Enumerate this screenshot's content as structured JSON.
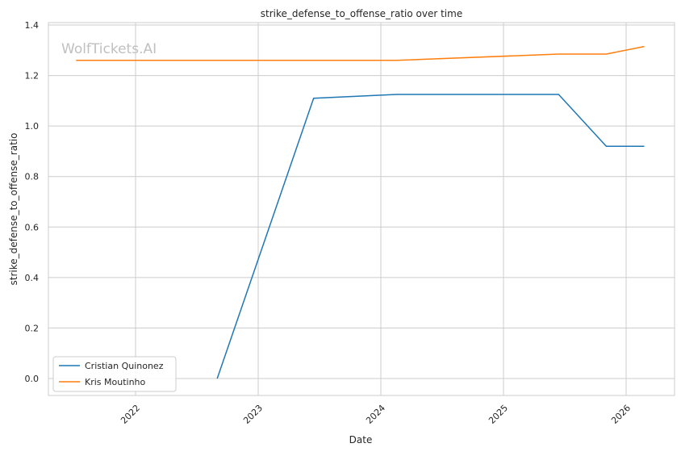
{
  "chart_data": {
    "type": "line",
    "title": "strike_defense_to_offense_ratio over time",
    "xlabel": "Date",
    "ylabel": "strike_defense_to_offense_ratio",
    "watermark": "WolfTickets.AI",
    "grid": true,
    "legend_position": "bottom-left",
    "xlim": [
      "2021-05-01",
      "2026-05-01"
    ],
    "ylim": [
      -0.07,
      1.41
    ],
    "x_ticks": [
      "2022",
      "2023",
      "2024",
      "2025",
      "2026"
    ],
    "y_ticks": [
      "0.0",
      "0.2",
      "0.4",
      "0.6",
      "0.8",
      "1.0",
      "1.2",
      "1.4"
    ],
    "series": [
      {
        "name": "Cristian Quinonez",
        "color": "#1f77b4",
        "x": [
          "2022-09-01",
          "2023-06-15",
          "2024-02-17",
          "2025-06-14",
          "2025-11-03",
          "2026-02-24"
        ],
        "y": [
          0.0,
          1.11,
          1.125,
          1.125,
          0.92,
          0.92
        ]
      },
      {
        "name": "Kris Moutinho",
        "color": "#ff7f0e",
        "x": [
          "2021-07-08",
          "2024-02-17",
          "2025-06-14",
          "2025-11-03",
          "2026-02-24"
        ],
        "y": [
          1.26,
          1.26,
          1.285,
          1.285,
          1.315
        ]
      }
    ]
  }
}
